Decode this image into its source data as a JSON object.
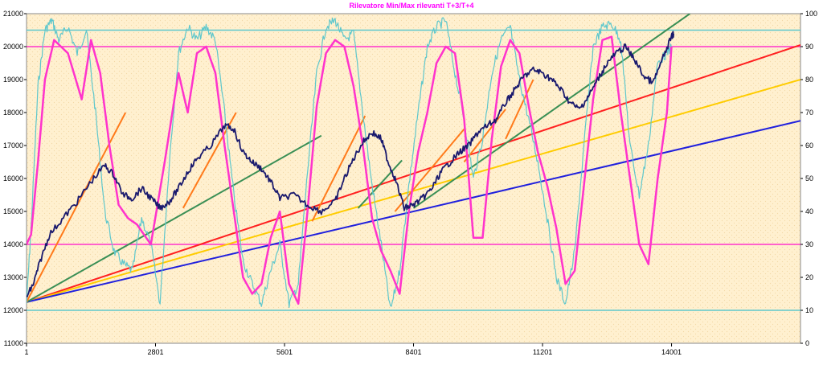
{
  "chart_data": {
    "type": "line",
    "title": "Rilevatore Min/Max rilevanti T+3/T+4",
    "x_ticks": [
      "1",
      "2801",
      "5601",
      "8401",
      "11201",
      "14001"
    ],
    "y_left_ticks": [
      "11000",
      "12000",
      "13000",
      "14000",
      "15000",
      "16000",
      "17000",
      "18000",
      "19000",
      "20000",
      "21000"
    ],
    "y_right_ticks": [
      "0",
      "10",
      "20",
      "30",
      "40",
      "50",
      "60",
      "70",
      "80",
      "90",
      "100"
    ],
    "xlim": [
      1,
      16800
    ],
    "ylim_left": [
      11000,
      21000
    ],
    "ylim_right": [
      0,
      100
    ],
    "colors": {
      "plot_bg": "#fff0cf",
      "price": "#1a1a6e",
      "magenta": "#ff33cc",
      "cyan": "#5ec7cc",
      "red": "#ff2020",
      "yellow": "#ffcc00",
      "blue": "#2020dd",
      "green": "#3a8f55",
      "orange": "#ff7a1a"
    },
    "horizontal_lines": [
      {
        "axis": "right",
        "value": 95,
        "color": "#5ec7cc"
      },
      {
        "axis": "right",
        "value": 90,
        "color": "#ff33cc"
      },
      {
        "axis": "right",
        "value": 30,
        "color": "#ff33cc"
      },
      {
        "axis": "right",
        "value": 10,
        "color": "#5ec7cc"
      }
    ],
    "trend_lines": [
      {
        "color": "#ff2020",
        "x": [
          1,
          16800
        ],
        "y": [
          12250,
          20050
        ]
      },
      {
        "color": "#ffcc00",
        "x": [
          1,
          16800
        ],
        "y": [
          12250,
          19000
        ]
      },
      {
        "color": "#2020dd",
        "x": [
          1,
          16800
        ],
        "y": [
          12250,
          17750
        ]
      },
      {
        "color": "#3a8f55",
        "x": [
          1,
          6400
        ],
        "y": [
          12250,
          17300
        ]
      },
      {
        "color": "#3a8f55",
        "x": [
          7200,
          8150
        ],
        "y": [
          15100,
          16550
        ]
      },
      {
        "color": "#3a8f55",
        "x": [
          8400,
          14400
        ],
        "y": [
          15100,
          21000
        ]
      },
      {
        "color": "#ff7a1a",
        "x": [
          1,
          2150
        ],
        "y": [
          12250,
          18000
        ]
      },
      {
        "color": "#ff7a1a",
        "x": [
          3400,
          4550
        ],
        "y": [
          15100,
          18000
        ]
      },
      {
        "color": "#ff7a1a",
        "x": [
          6200,
          7350
        ],
        "y": [
          14700,
          17900
        ]
      },
      {
        "color": "#ff7a1a",
        "x": [
          8000,
          9500
        ],
        "y": [
          15000,
          17500
        ]
      },
      {
        "color": "#ff7a1a",
        "x": [
          9500,
          10400
        ],
        "y": [
          16500,
          18100
        ]
      },
      {
        "color": "#ff7a1a",
        "x": [
          10400,
          11000
        ],
        "y": [
          17200,
          19000
        ]
      }
    ],
    "series": [
      {
        "axis": "left",
        "color": "#1a1a6e",
        "x": [
          1,
          150,
          300,
          500,
          800,
          1100,
          1400,
          1700,
          1900,
          2100,
          2300,
          2500,
          2700,
          2900,
          3100,
          3300,
          3500,
          3700,
          4000,
          4300,
          4500,
          4700,
          4900,
          5100,
          5300,
          5500,
          5800,
          6100,
          6400,
          6700,
          6900,
          7100,
          7300,
          7500,
          7700,
          7850,
          8000,
          8200,
          8400,
          8600,
          8800,
          9000,
          9200,
          9400,
          9600,
          9800,
          10000,
          10200,
          10400,
          10600,
          10800,
          11000,
          11200,
          11400,
          11600,
          11800,
          12000,
          12200,
          12400,
          12600,
          12800,
          13000,
          13200,
          13400,
          13600,
          13800,
          14000,
          14050
        ],
        "y": [
          12400,
          12800,
          13500,
          14300,
          14800,
          15300,
          15900,
          16400,
          16100,
          15500,
          15400,
          15700,
          15400,
          15100,
          15300,
          15700,
          16200,
          16600,
          17000,
          17600,
          17500,
          16800,
          16500,
          16300,
          15900,
          15400,
          15500,
          15200,
          15000,
          15300,
          16000,
          16600,
          17100,
          17400,
          17200,
          16500,
          16000,
          15100,
          15200,
          15400,
          15700,
          16200,
          16500,
          16800,
          17000,
          17400,
          17600,
          17800,
          18300,
          18700,
          19100,
          19300,
          19200,
          19000,
          18700,
          18300,
          18100,
          18500,
          19000,
          19500,
          19800,
          20000,
          19600,
          19100,
          18900,
          19600,
          20300,
          20400
        ]
      },
      {
        "axis": "right",
        "color": "#ff33cc",
        "x": [
          1,
          100,
          250,
          400,
          600,
          900,
          1200,
          1400,
          1600,
          1800,
          2000,
          2200,
          2400,
          2700,
          3000,
          3300,
          3500,
          3700,
          3900,
          4100,
          4300,
          4500,
          4700,
          4900,
          5100,
          5300,
          5500,
          5700,
          5900,
          6100,
          6300,
          6500,
          6700,
          6900,
          7100,
          7300,
          7500,
          7700,
          7900,
          8100,
          8300,
          8500,
          8700,
          8900,
          9100,
          9300,
          9500,
          9700,
          9900,
          10100,
          10300,
          10500,
          10700,
          10900,
          11100,
          11300,
          11500,
          11700,
          11900,
          12100,
          12300,
          12500,
          12700,
          12900,
          13100,
          13300,
          13500,
          13700,
          13900,
          14000
        ],
        "y": [
          30,
          33,
          55,
          80,
          92,
          88,
          74,
          92,
          82,
          60,
          42,
          38,
          36,
          30,
          55,
          82,
          70,
          88,
          90,
          82,
          60,
          40,
          20,
          15,
          18,
          32,
          40,
          18,
          12,
          40,
          72,
          88,
          92,
          90,
          78,
          60,
          38,
          28,
          22,
          15,
          40,
          58,
          70,
          85,
          90,
          88,
          68,
          32,
          32,
          62,
          84,
          92,
          88,
          72,
          58,
          48,
          35,
          18,
          22,
          48,
          74,
          92,
          93,
          70,
          50,
          30,
          24,
          50,
          70,
          90
        ]
      },
      {
        "axis": "right",
        "color": "#5ec7cc",
        "x": [
          1,
          100,
          250,
          400,
          550,
          700,
          900,
          1100,
          1300,
          1500,
          1700,
          1900,
          2100,
          2300,
          2500,
          2700,
          2900,
          3100,
          3300,
          3500,
          3700,
          3900,
          4100,
          4300,
          4500,
          4700,
          4900,
          5100,
          5300,
          5500,
          5700,
          5900,
          6100,
          6300,
          6500,
          6700,
          6900,
          7100,
          7300,
          7500,
          7700,
          7900,
          8100,
          8300,
          8500,
          8700,
          8900,
          9100,
          9300,
          9500,
          9700,
          9900,
          10100,
          10300,
          10500,
          10700,
          10900,
          11100,
          11300,
          11500,
          11700,
          11900,
          12100,
          12300,
          12500,
          12700,
          12900,
          13100,
          13300,
          13500,
          13700,
          13900,
          14000
        ],
        "y": [
          12,
          35,
          78,
          95,
          98,
          92,
          96,
          88,
          95,
          70,
          40,
          28,
          24,
          22,
          38,
          30,
          12,
          55,
          88,
          96,
          92,
          96,
          92,
          70,
          45,
          25,
          18,
          12,
          22,
          30,
          12,
          18,
          52,
          82,
          96,
          98,
          92,
          94,
          70,
          48,
          30,
          10,
          22,
          48,
          70,
          90,
          96,
          98,
          82,
          68,
          50,
          62,
          82,
          92,
          96,
          80,
          68,
          55,
          38,
          20,
          12,
          28,
          60,
          90,
          96,
          97,
          92,
          60,
          45,
          60,
          85,
          88,
          90
        ]
      }
    ]
  }
}
